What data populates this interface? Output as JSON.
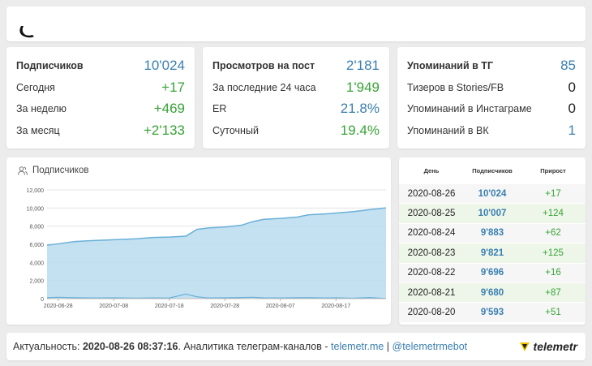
{
  "stats": {
    "subscribers": {
      "rows": [
        {
          "label": "Подписчиков",
          "value": "10'024"
        },
        {
          "label": "Сегодня",
          "value": "+17"
        },
        {
          "label": "За неделю",
          "value": "+469"
        },
        {
          "label": "За месяц",
          "value": "+2'133"
        }
      ]
    },
    "views": {
      "rows": [
        {
          "label": "Просмотров на пост",
          "value": "2'181"
        },
        {
          "label": "За последние 24 часа",
          "value": "1'949"
        },
        {
          "label": "ER",
          "value": "21.8%"
        },
        {
          "label": "Суточный",
          "value": "19.4%"
        }
      ]
    },
    "mentions": {
      "rows": [
        {
          "label": "Упоминаний в ТГ",
          "value": "85"
        },
        {
          "label": "Тизеров в Stories/FB",
          "value": "0"
        },
        {
          "label": "Упоминаний в Инстаграме",
          "value": "0"
        },
        {
          "label": "Упоминаний в ВК",
          "value": "1"
        }
      ]
    }
  },
  "chart_title": "Подписчиков",
  "chart_data": {
    "type": "area",
    "title": "Подписчиков",
    "xlabel": "",
    "ylabel": "",
    "ylim": [
      0,
      12000
    ],
    "yticks": [
      "0",
      "2,000",
      "4,000",
      "6,000",
      "8,000",
      "10,000",
      "12,000"
    ],
    "xticks": [
      "2020-06-28",
      "2020-07-08",
      "2020-07-18",
      "2020-07-28",
      "2020-08-07",
      "2020-08-17"
    ],
    "grid": true,
    "series": [
      {
        "name": "Подписчиков",
        "x": [
          "2020-06-26",
          "2020-06-28",
          "2020-07-01",
          "2020-07-04",
          "2020-07-08",
          "2020-07-12",
          "2020-07-15",
          "2020-07-18",
          "2020-07-21",
          "2020-07-23",
          "2020-07-25",
          "2020-07-28",
          "2020-07-31",
          "2020-08-02",
          "2020-08-04",
          "2020-08-07",
          "2020-08-10",
          "2020-08-12",
          "2020-08-15",
          "2020-08-17",
          "2020-08-20",
          "2020-08-23",
          "2020-08-26"
        ],
        "values": [
          5900,
          6050,
          6300,
          6400,
          6500,
          6600,
          6750,
          6800,
          6900,
          7650,
          7800,
          7900,
          8100,
          8500,
          8750,
          8850,
          9000,
          9250,
          9350,
          9450,
          9593,
          9821,
          10024
        ]
      },
      {
        "name": "Прирост",
        "x": [
          "2020-06-26",
          "2020-06-28",
          "2020-07-01",
          "2020-07-04",
          "2020-07-08",
          "2020-07-12",
          "2020-07-15",
          "2020-07-18",
          "2020-07-21",
          "2020-07-23",
          "2020-07-25",
          "2020-07-28",
          "2020-07-31",
          "2020-08-02",
          "2020-08-04",
          "2020-08-07",
          "2020-08-10",
          "2020-08-12",
          "2020-08-15",
          "2020-08-17",
          "2020-08-20",
          "2020-08-23",
          "2020-08-26"
        ],
        "values": [
          100,
          150,
          100,
          80,
          90,
          60,
          80,
          70,
          500,
          200,
          80,
          90,
          120,
          150,
          90,
          80,
          100,
          110,
          80,
          90,
          51,
          125,
          17
        ]
      }
    ]
  },
  "table": {
    "headers": [
      "День",
      "Подписчиков",
      "Прирост"
    ],
    "rows": [
      {
        "day": "2020-08-26",
        "subs": "10'024",
        "growth": "+17"
      },
      {
        "day": "2020-08-25",
        "subs": "10'007",
        "growth": "+124"
      },
      {
        "day": "2020-08-24",
        "subs": "9'883",
        "growth": "+62"
      },
      {
        "day": "2020-08-23",
        "subs": "9'821",
        "growth": "+125"
      },
      {
        "day": "2020-08-22",
        "subs": "9'696",
        "growth": "+16"
      },
      {
        "day": "2020-08-21",
        "subs": "9'680",
        "growth": "+87"
      },
      {
        "day": "2020-08-20",
        "subs": "9'593",
        "growth": "+51"
      }
    ]
  },
  "footer": {
    "prefix": "Актуальность: ",
    "timestamp": "2020-08-26 08:37:16",
    "middle": ". Аналитика телеграм-каналов - ",
    "link1": "telemetr.me",
    "sep": " | ",
    "link2": "@telemetrmebot",
    "brand": "telemetr"
  },
  "colors": {
    "blue": "#3a7fb0",
    "green": "#37a337",
    "area": "#b9dcef",
    "line": "#6ab0d8"
  }
}
